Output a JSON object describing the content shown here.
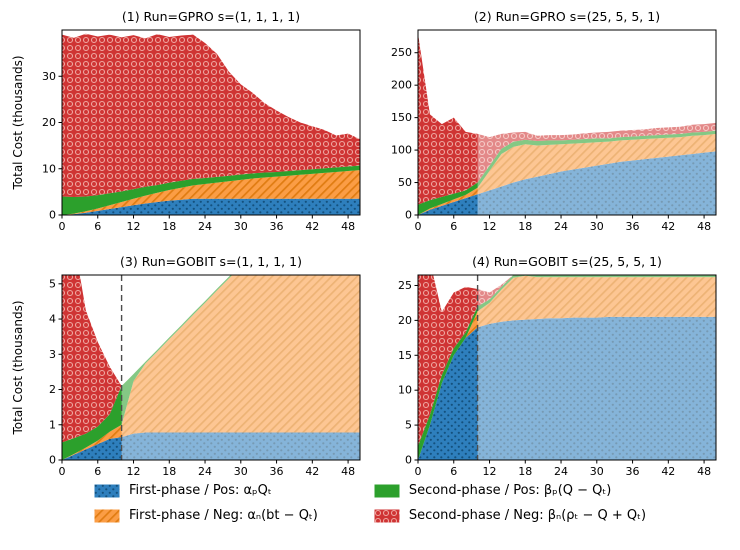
{
  "figure": {
    "ylabel": "Total Cost (thousands)",
    "background": "#ffffff"
  },
  "colors": {
    "first_pos": "#2e7fbd",
    "first_pos_accent": "#14517e",
    "first_neg": "#fb9d45",
    "first_neg_accent": "#e07c12",
    "second_pos": "#2ca02c",
    "second_neg": "#cf3434",
    "second_neg_accent": "#efa8a2",
    "dashed_line": "#4d4d4d",
    "axis": "#000000"
  },
  "legend": {
    "items": [
      {
        "key": "first_pos",
        "label": "First-phase / Pos: αₚQₜ"
      },
      {
        "key": "first_neg",
        "label": "First-phase / Neg: αₙ(bt − Qₜ)"
      },
      {
        "key": "second_pos",
        "label": "Second-phase / Pos: βₚ(Q − Qₜ)"
      },
      {
        "key": "second_neg",
        "label": "Second-phase / Neg: βₙ(ρₜ − Q + Qₜ)"
      }
    ]
  },
  "chart_data": [
    {
      "type": "area",
      "title": "(1) Run=GPRO s=(1, 1, 1, 1)",
      "xlabel": "",
      "ylabel": "Total Cost (thousands)",
      "xlim": [
        0,
        50
      ],
      "ylim": [
        0,
        40
      ],
      "xticks": [
        0,
        6,
        12,
        18,
        24,
        30,
        36,
        42,
        48
      ],
      "yticks": [
        0,
        10,
        20,
        30
      ],
      "grid": false,
      "highlight_from_x": null,
      "dashed_line_x": null,
      "x": [
        0,
        2,
        4,
        6,
        8,
        10,
        12,
        14,
        16,
        18,
        20,
        22,
        24,
        26,
        28,
        30,
        32,
        34,
        36,
        38,
        40,
        42,
        44,
        46,
        48,
        50
      ],
      "series": [
        {
          "key": "first_pos",
          "name": "First-phase / Pos",
          "values": [
            0,
            0.2,
            0.5,
            0.9,
            1.3,
            1.7,
            2.1,
            2.5,
            2.8,
            3.1,
            3.3,
            3.5,
            3.5,
            3.5,
            3.5,
            3.5,
            3.5,
            3.5,
            3.5,
            3.5,
            3.5,
            3.5,
            3.5,
            3.5,
            3.5,
            3.5
          ]
        },
        {
          "key": "first_neg",
          "name": "First-phase / Neg",
          "values": [
            0,
            0.1,
            0.3,
            0.5,
            0.8,
            1.1,
            1.4,
            1.7,
            2.0,
            2.3,
            2.6,
            2.9,
            3.2,
            3.5,
            3.8,
            4.1,
            4.4,
            4.6,
            4.8,
            5.0,
            5.2,
            5.4,
            5.6,
            5.8,
            6.0,
            6.2
          ]
        },
        {
          "key": "second_pos",
          "name": "Second-phase / Pos",
          "values": [
            4.0,
            3.6,
            3.2,
            2.9,
            2.6,
            2.3,
            2.1,
            1.9,
            1.7,
            1.6,
            1.5,
            1.4,
            1.3,
            1.25,
            1.2,
            1.15,
            1.1,
            1.1,
            1.0,
            1.0,
            1.0,
            1.0,
            1.0,
            1.0,
            1.0,
            1.0
          ]
        },
        {
          "key": "second_neg",
          "name": "Second-phase / Neg",
          "values": [
            35.0,
            34.4,
            35.2,
            34.3,
            34.3,
            33.3,
            33.3,
            32.1,
            32.6,
            31.5,
            31.4,
            31.2,
            29.2,
            26.6,
            22.5,
            19.5,
            17.4,
            15.0,
            13.3,
            11.7,
            10.3,
            9.3,
            8.3,
            6.9,
            7.1,
            5.7
          ]
        }
      ]
    },
    {
      "type": "area",
      "title": "(2) Run=GPRO s=(25, 5, 5, 1)",
      "xlabel": "",
      "ylabel": "",
      "xlim": [
        0,
        50
      ],
      "ylim": [
        0,
        285
      ],
      "xticks": [
        0,
        6,
        12,
        18,
        24,
        30,
        36,
        42,
        48
      ],
      "yticks": [
        0,
        50,
        100,
        150,
        200,
        250
      ],
      "grid": false,
      "highlight_from_x": 10,
      "dashed_line_x": null,
      "x": [
        0,
        2,
        4,
        6,
        8,
        10,
        12,
        14,
        16,
        18,
        20,
        22,
        24,
        26,
        28,
        30,
        32,
        34,
        36,
        38,
        40,
        42,
        44,
        46,
        48,
        50
      ],
      "series": [
        {
          "key": "first_pos",
          "name": "First-phase / Pos",
          "values": [
            0,
            8,
            14,
            20,
            26,
            32,
            38,
            44,
            50,
            55,
            59,
            63,
            67,
            70,
            73,
            76,
            79,
            82,
            84,
            86,
            88,
            90,
            92,
            94,
            96,
            98
          ]
        },
        {
          "key": "first_neg",
          "name": "First-phase / Neg",
          "values": [
            0,
            2,
            3,
            4,
            5,
            10,
            30,
            50,
            55,
            54,
            48,
            45,
            42,
            40,
            38,
            36,
            34,
            33,
            32,
            31,
            30,
            29,
            28,
            28,
            27,
            27
          ]
        },
        {
          "key": "second_pos",
          "name": "Second-phase / Pos",
          "values": [
            16,
            13,
            11,
            9,
            7,
            8,
            8,
            8,
            8,
            7,
            7,
            7,
            6,
            6,
            6,
            6,
            5,
            5,
            5,
            5,
            5,
            5,
            5,
            5,
            5,
            5
          ]
        },
        {
          "key": "second_neg",
          "name": "Second-phase / Neg",
          "values": [
            264,
            132,
            112,
            117,
            90,
            75,
            44,
            23,
            14,
            12,
            8,
            8,
            8,
            8,
            9,
            9,
            10,
            10,
            10,
            10,
            11,
            11,
            11,
            12,
            12,
            12
          ]
        }
      ]
    },
    {
      "type": "area",
      "title": "(3) Run=GOBIT s=(1, 1, 1, 1)",
      "xlabel": "",
      "ylabel": "Total Cost (thousands)",
      "xlim": [
        0,
        50
      ],
      "ylim": [
        0,
        5.25
      ],
      "xticks": [
        0,
        6,
        12,
        18,
        24,
        30,
        36,
        42,
        48
      ],
      "yticks": [
        0,
        1,
        2,
        3,
        4,
        5
      ],
      "grid": false,
      "highlight_from_x": 10,
      "dashed_line_x": 10,
      "x": [
        0,
        2,
        4,
        6,
        8,
        10,
        12,
        14,
        16,
        18,
        20,
        22,
        24,
        26,
        28,
        30,
        32,
        34,
        36,
        38,
        40,
        42,
        44,
        46,
        48,
        50
      ],
      "series": [
        {
          "key": "first_pos",
          "name": "First-phase / Pos",
          "values": [
            0,
            0.15,
            0.3,
            0.45,
            0.6,
            0.65,
            0.75,
            0.78,
            0.78,
            0.78,
            0.78,
            0.78,
            0.78,
            0.78,
            0.78,
            0.78,
            0.78,
            0.78,
            0.78,
            0.78,
            0.78,
            0.78,
            0.78,
            0.78,
            0.78,
            0.78
          ]
        },
        {
          "key": "first_neg",
          "name": "First-phase / Neg",
          "values": [
            0,
            0.02,
            0.05,
            0.1,
            0.2,
            0.35,
            1.49,
            1.96,
            2.3,
            2.65,
            2.99,
            3.34,
            3.68,
            4.03,
            4.37,
            4.72,
            5.06,
            5.41,
            5.75,
            6.1,
            6.44,
            6.79,
            7.13,
            7.48,
            7.82,
            8.17
          ]
        },
        {
          "key": "second_pos",
          "name": "Second-phase / Pos",
          "values": [
            0.5,
            0.45,
            0.4,
            0.4,
            0.5,
            1.1,
            0.2,
            0.05,
            0.05,
            0.05,
            0.05,
            0.05,
            0.05,
            0.05,
            0.05,
            0.05,
            0.05,
            0.05,
            0.05,
            0.05,
            0.05,
            0.05,
            0.05,
            0.05,
            0.05,
            0.05
          ]
        },
        {
          "key": "second_neg",
          "name": "Second-phase / Neg",
          "values": [
            6.0,
            5.6,
            3.5,
            2.4,
            1.35,
            0,
            0,
            0,
            0,
            0,
            0,
            0,
            0,
            0,
            0,
            0,
            0,
            0,
            0,
            0,
            0,
            0,
            0,
            0,
            0,
            0
          ]
        }
      ]
    },
    {
      "type": "area",
      "title": "(4) Run=GOBIT s=(25, 5, 5, 1)",
      "xlabel": "",
      "ylabel": "",
      "xlim": [
        0,
        50
      ],
      "ylim": [
        0,
        26.5
      ],
      "xticks": [
        0,
        6,
        12,
        18,
        24,
        30,
        36,
        42,
        48
      ],
      "yticks": [
        0,
        5,
        10,
        15,
        20,
        25
      ],
      "grid": false,
      "highlight_from_x": 10,
      "dashed_line_x": 10,
      "x": [
        0,
        2,
        4,
        6,
        8,
        10,
        12,
        14,
        16,
        18,
        20,
        22,
        24,
        26,
        28,
        30,
        32,
        34,
        36,
        38,
        40,
        42,
        44,
        46,
        48,
        50
      ],
      "series": [
        {
          "key": "first_pos",
          "name": "First-phase / Pos",
          "values": [
            0,
            5,
            11,
            15,
            17.5,
            19,
            19.5,
            19.8,
            20,
            20.1,
            20.2,
            20.3,
            20.3,
            20.4,
            20.4,
            20.4,
            20.5,
            20.5,
            20.5,
            20.5,
            20.5,
            20.5,
            20.5,
            20.5,
            20.5,
            20.5
          ]
        },
        {
          "key": "first_neg",
          "name": "First-phase / Neg",
          "values": [
            0,
            0,
            0,
            0,
            0,
            2.3,
            3.0,
            4.6,
            6.1,
            6.3,
            6.0,
            5.9,
            5.9,
            5.8,
            5.8,
            5.8,
            5.7,
            5.7,
            5.7,
            5.7,
            5.7,
            5.7,
            5.7,
            5.7,
            5.7,
            5.7
          ]
        },
        {
          "key": "second_pos",
          "name": "Second-phase / Pos",
          "values": [
            2,
            1.5,
            1.2,
            1.0,
            0.8,
            0.7,
            0.5,
            0.4,
            0.4,
            0.3,
            0.3,
            0.3,
            0.3,
            0.3,
            0.3,
            0.3,
            0.3,
            0.3,
            0.3,
            0.3,
            0.3,
            0.3,
            0.3,
            0.3,
            0.3,
            0.3
          ]
        },
        {
          "key": "second_neg",
          "name": "Second-phase / Neg",
          "values": [
            30,
            22,
            9,
            8,
            6.5,
            2.5,
            1.0,
            0.3,
            0,
            0,
            0,
            0,
            0,
            0,
            0,
            0,
            0,
            0,
            0,
            0,
            0,
            0,
            0,
            0,
            0,
            0
          ]
        }
      ]
    }
  ]
}
